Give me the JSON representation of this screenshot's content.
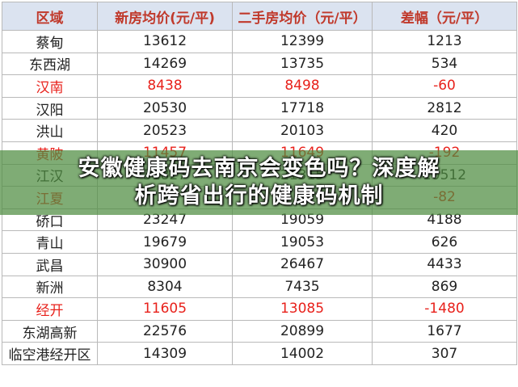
{
  "table": {
    "headers": [
      "区域",
      "新房均价(元/平)",
      "二手房均价（元/平）",
      "差幅（元/平）"
    ],
    "rows": [
      {
        "cells": [
          "蔡甸",
          "13612",
          "12399",
          "1213"
        ],
        "highlight": false
      },
      {
        "cells": [
          "东西湖",
          "14269",
          "13735",
          "534"
        ],
        "highlight": false
      },
      {
        "cells": [
          "汉南",
          "8438",
          "8498",
          "-60"
        ],
        "highlight": true
      },
      {
        "cells": [
          "汉阳",
          "20530",
          "17718",
          "2812"
        ],
        "highlight": false
      },
      {
        "cells": [
          "洪山",
          "20523",
          "20103",
          "420"
        ],
        "highlight": false
      },
      {
        "cells": [
          "黄陂",
          "11457",
          "11649",
          "-192"
        ],
        "highlight": true
      },
      {
        "cells": [
          "江汉",
          "31827",
          "21315",
          "10512"
        ],
        "highlight": false
      },
      {
        "cells": [
          "江夏",
          "",
          "",
          "-82"
        ],
        "highlight": true
      },
      {
        "cells": [
          "硚口",
          "23247",
          "19059",
          "4188"
        ],
        "highlight": false
      },
      {
        "cells": [
          "青山",
          "19679",
          "19053",
          "626"
        ],
        "highlight": false
      },
      {
        "cells": [
          "武昌",
          "30900",
          "26467",
          "4433"
        ],
        "highlight": false
      },
      {
        "cells": [
          "新洲",
          "8304",
          "7435",
          "869"
        ],
        "highlight": false
      },
      {
        "cells": [
          "经开",
          "11605",
          "13085",
          "-1480"
        ],
        "highlight": true
      },
      {
        "cells": [
          "东湖高新",
          "22576",
          "20899",
          "1677"
        ],
        "highlight": false
      },
      {
        "cells": [
          "临空港经开区",
          "14309",
          "14002",
          "307"
        ],
        "highlight": false
      }
    ]
  },
  "banner": {
    "line1": "安徽健康码去南京会变色吗？深度解",
    "line2": "析跨省出行的健康码机制"
  },
  "colors": {
    "header_bg": "#dbe3f0",
    "header_text": "#c0392b",
    "highlight_text": "#e8211b",
    "normal_text": "#222222",
    "banner_bg": "rgba(78,140,64,0.72)"
  }
}
